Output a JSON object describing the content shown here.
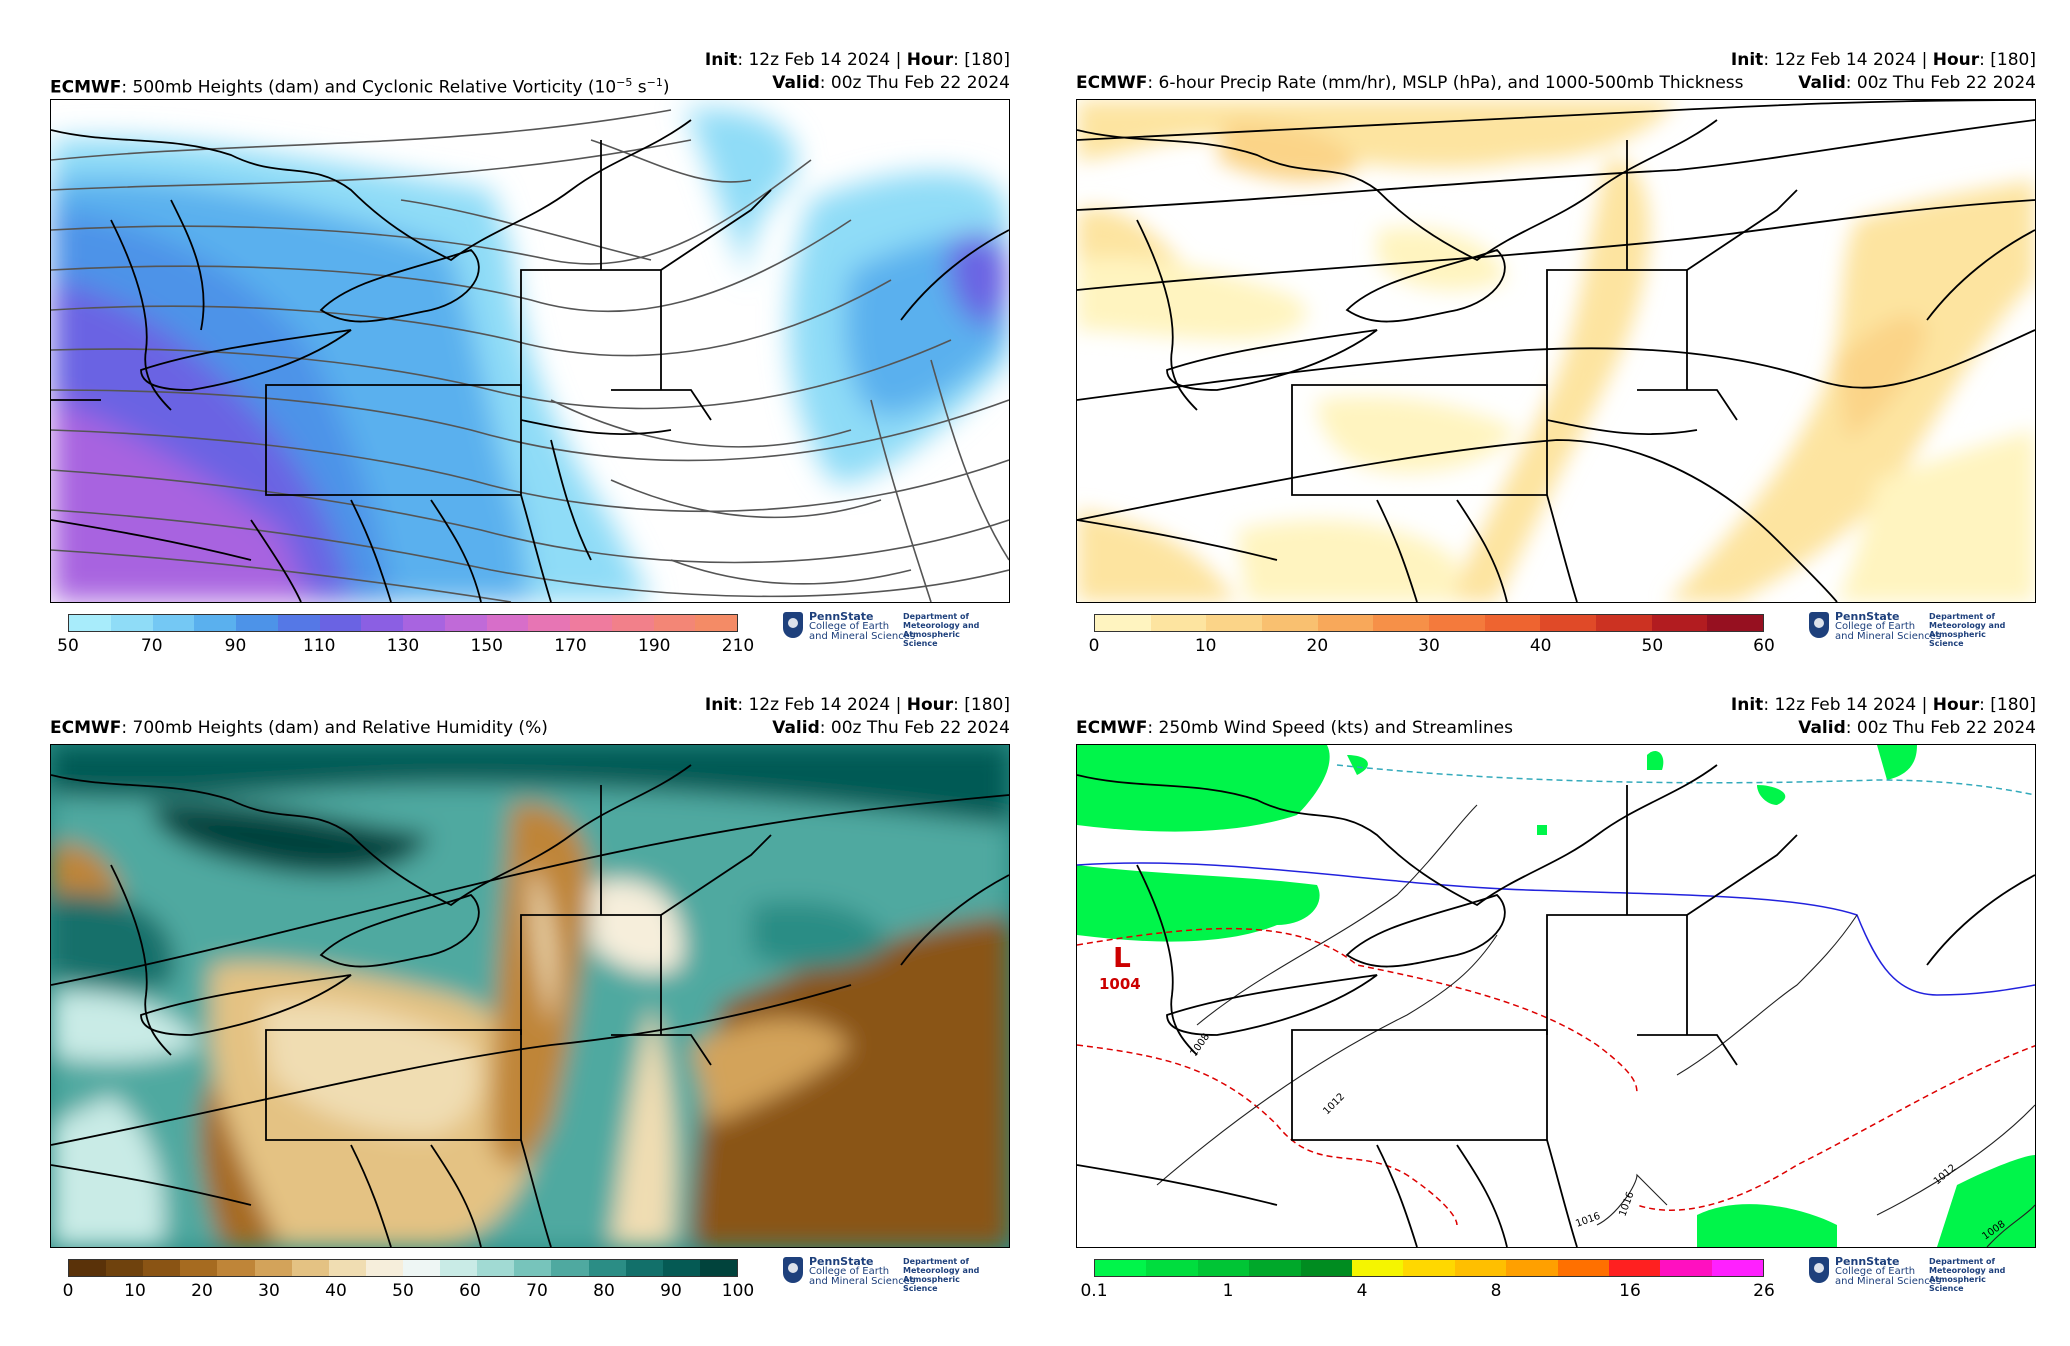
{
  "panels": [
    {
      "init_label": "Init",
      "init_value": ": 12z Feb 14 2024 | ",
      "hour_label": "Hour",
      "hour_value": ": [180]",
      "model": "ECMWF",
      "title": ": 500mb Heights (dam) and Cyclonic Relative Vorticity (10",
      "title_sup": "−5",
      "title_tail": " s",
      "title_sup2": "−1",
      "title_end": ")",
      "valid_label": "Valid",
      "valid_value": ": 00z Thu Feb 22 2024",
      "colorbar_colors": [
        "#a8ecfb",
        "#8fdcf7",
        "#74c8f4",
        "#5ab0ee",
        "#4d93e8",
        "#5578e6",
        "#6a63e3",
        "#8b5fe3",
        "#a864e0",
        "#c06ad8",
        "#d76ec9",
        "#e775b4",
        "#ef7b9e",
        "#f2808a",
        "#f38676",
        "#f48b66"
      ],
      "ticks": [
        "50",
        "70",
        "90",
        "110",
        "130",
        "150",
        "170",
        "190",
        "210"
      ],
      "logo": {
        "name": "PennState",
        "sub1": "College of Earth",
        "sub2": "and Mineral Sciences",
        "dept1": "Department of",
        "dept2": "Meteorology and",
        "dept3": "Atmospheric Science"
      }
    },
    {
      "init_label": "Init",
      "init_value": ": 12z Feb 14 2024 | ",
      "hour_label": "Hour",
      "hour_value": ": [180]",
      "model": "ECMWF",
      "title": ": 6-hour Precip Rate (mm/hr), MSLP (hPa), and 1000-500mb Thickness",
      "valid_label": "Valid",
      "valid_value": ": 00z Thu Feb 22 2024",
      "colorbar_colors": [
        "#fff4c0",
        "#fde4a0",
        "#fbd488",
        "#f9c070",
        "#f8a85a",
        "#f69048",
        "#f47a3c",
        "#ee6430",
        "#e04a28",
        "#cc3222",
        "#b21c20",
        "#961020"
      ],
      "ticks": [
        "0",
        "10",
        "20",
        "30",
        "40",
        "50",
        "60"
      ],
      "logo": {
        "name": "PennState",
        "sub1": "College of Earth",
        "sub2": "and Mineral Sciences",
        "dept1": "Department of",
        "dept2": "Meteorology and",
        "dept3": "Atmospheric Science"
      }
    },
    {
      "init_label": "Init",
      "init_value": ": 12z Feb 14 2024 | ",
      "hour_label": "Hour",
      "hour_value": ": [180]",
      "model": "ECMWF",
      "title": ": 700mb Heights (dam) and Relative Humidity (%)",
      "valid_label": "Valid",
      "valid_value": ": 00z Thu Feb 22 2024",
      "colorbar_colors": [
        "#5a3209",
        "#6f420d",
        "#8a5414",
        "#a66b20",
        "#bf8538",
        "#d3a35a",
        "#e4c283",
        "#f0ddb2",
        "#f6eedb",
        "#eef6f4",
        "#c9ebe6",
        "#a1dad3",
        "#77c4bb",
        "#4fa9a0",
        "#2b8d85",
        "#12706a",
        "#055a54",
        "#01433c"
      ],
      "ticks": [
        "0",
        "10",
        "20",
        "30",
        "40",
        "50",
        "60",
        "70",
        "80",
        "90",
        "100"
      ],
      "logo": {
        "name": "PennState",
        "sub1": "College of Earth",
        "sub2": "and Mineral Sciences",
        "dept1": "Department of",
        "dept2": "Meteorology and",
        "dept3": "Atmospheric Science"
      }
    },
    {
      "init_label": "Init",
      "init_value": ": 12z Feb 14 2024 | ",
      "hour_label": "Hour",
      "hour_value": ": [180]",
      "model": "ECMWF",
      "title": ": 250mb Wind Speed (kts) and Streamlines",
      "valid_label": "Valid",
      "valid_value": ": 00z Thu Feb 22 2024",
      "colorbar_colors": [
        "#00f54a",
        "#00dd3e",
        "#00c535",
        "#00a82a",
        "#008c20",
        "#f5f500",
        "#ffd800",
        "#ffbf00",
        "#ffa000",
        "#ff7000",
        "#ff2020",
        "#ff10c0",
        "#ff20ff"
      ],
      "ticks": [
        "0.1",
        "1",
        "4",
        "8",
        "16",
        "26"
      ],
      "low_letter": "L",
      "low_value": "1004",
      "isobar_labels": [
        "1008",
        "1012",
        "1016",
        "1016",
        "1012",
        "1008"
      ],
      "logo": {
        "name": "PennState",
        "sub1": "College of Earth",
        "sub2": "and Mineral Sciences",
        "dept1": "Department of",
        "dept2": "Meteorology and",
        "dept3": "Atmospheric Science"
      }
    }
  ]
}
